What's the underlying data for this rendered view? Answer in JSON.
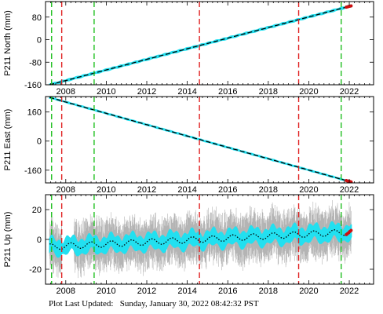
{
  "footer": {
    "label": "Plot Last Updated:",
    "timestamp": "Sunday, January 30, 2022 08:42:32 PST"
  },
  "colors": {
    "data": "#22e0f0",
    "error_bar": "#b4b4b4",
    "trend": "#000000",
    "equipment_change": "#e02020",
    "event": "#20c020",
    "recent": "#cc1010"
  },
  "chart_data": [
    {
      "type": "scatter",
      "name": "north",
      "ylabel": "P211 North (mm)",
      "xlabel": "",
      "xlim": [
        2007.0,
        2023.2
      ],
      "ylim": [
        -160,
        135
      ],
      "x_ticks": [
        2008,
        2010,
        2012,
        2014,
        2016,
        2018,
        2020,
        2022
      ],
      "y_ticks": [
        -160,
        -80,
        0,
        80
      ],
      "trend": {
        "x": [
          2007.2,
          2022.1
        ],
        "y": [
          -160,
          120
        ]
      },
      "scatter_halfwidth": 4,
      "error_halfwidth": 0,
      "red_dashed_lines": [
        2007.8,
        2014.6,
        2019.5
      ],
      "green_dashed_lines": [
        2007.3,
        2009.4,
        2021.6
      ]
    },
    {
      "type": "scatter",
      "name": "east",
      "ylabel": "P211 East (mm)",
      "xlabel": "",
      "xlim": [
        2007.0,
        2023.2
      ],
      "ylim": [
        -230,
        245
      ],
      "x_ticks": [
        2008,
        2010,
        2012,
        2014,
        2016,
        2018,
        2020,
        2022
      ],
      "y_ticks": [
        -160,
        0,
        160
      ],
      "trend": {
        "x": [
          2007.2,
          2022.1
        ],
        "y": [
          240,
          -225
        ]
      },
      "scatter_halfwidth": 4,
      "error_halfwidth": 0,
      "red_dashed_lines": [
        2007.8,
        2014.6,
        2019.5
      ],
      "green_dashed_lines": [
        2007.3,
        2009.4,
        2021.6
      ]
    },
    {
      "type": "scatter",
      "name": "up",
      "ylabel": "P211 Up (mm)",
      "xlabel": "",
      "xlim": [
        2007.0,
        2023.2
      ],
      "ylim": [
        -30,
        30
      ],
      "x_ticks": [
        2008,
        2010,
        2012,
        2014,
        2016,
        2018,
        2020,
        2022
      ],
      "y_ticks": [
        -20,
        0,
        20
      ],
      "trend": {
        "x": [
          2007.2,
          2022.1
        ],
        "y": [
          -5,
          5
        ]
      },
      "seasonal_amplitude": 2,
      "scatter_halfwidth": 6,
      "error_halfwidth": 13,
      "red_dashed_lines": [
        2007.8,
        2014.6,
        2019.5
      ],
      "green_dashed_lines": [
        2007.3,
        2009.4,
        2021.6
      ]
    }
  ]
}
